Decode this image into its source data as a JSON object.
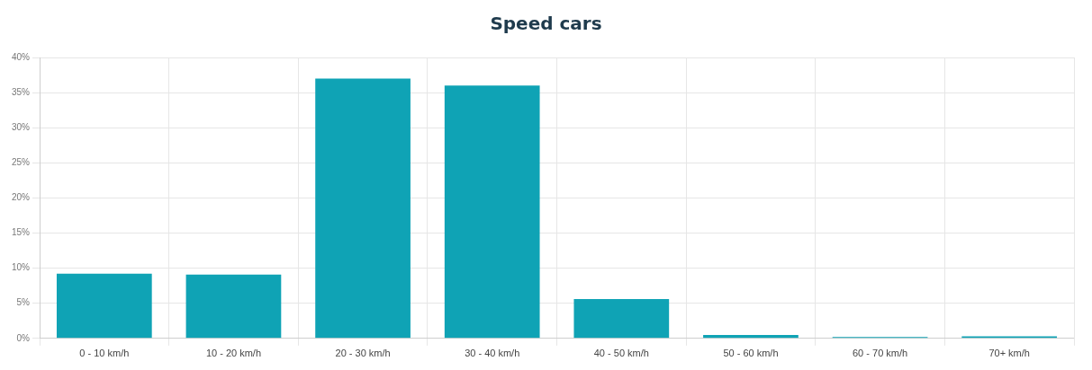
{
  "chart_data": {
    "type": "bar",
    "title": "Speed cars",
    "categories": [
      "0 - 10 km/h",
      "10 - 20 km/h",
      "20 - 30 km/h",
      "30 - 40 km/h",
      "40 - 50 km/h",
      "50 - 60 km/h",
      "60 - 70 km/h",
      "70+ km/h"
    ],
    "values": [
      9.2,
      9.1,
      37,
      36,
      5.6,
      0.5,
      0.2,
      0.3
    ],
    "color": "#0fa3b5",
    "ylim": [
      0,
      40
    ],
    "yticks": [
      {
        "value": 0,
        "label": "0%"
      },
      {
        "value": 5,
        "label": "5%"
      },
      {
        "value": 10,
        "label": "10%"
      },
      {
        "value": 15,
        "label": "15%"
      },
      {
        "value": 20,
        "label": "20%"
      },
      {
        "value": 25,
        "label": "25%"
      },
      {
        "value": 30,
        "label": "30%"
      },
      {
        "value": 35,
        "label": "35%"
      },
      {
        "value": 40,
        "label": "40%"
      }
    ],
    "grid": true
  }
}
